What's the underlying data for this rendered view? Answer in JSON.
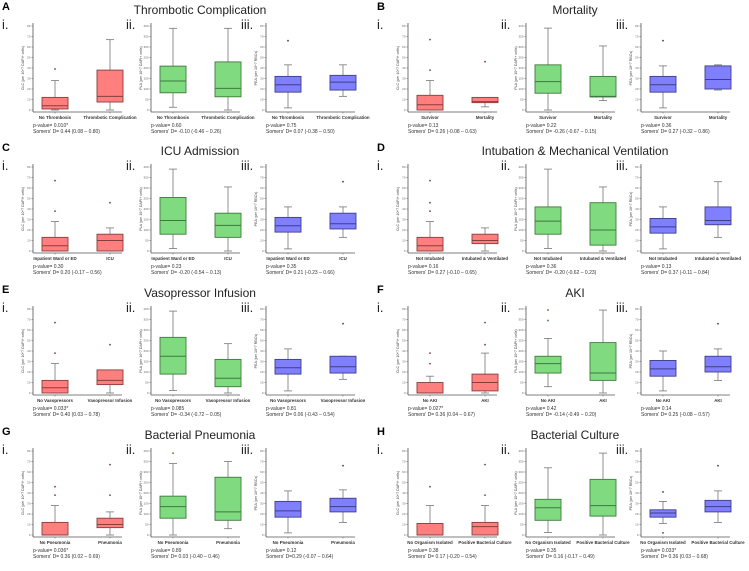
{
  "chart_data": {
    "type": "box",
    "axes": {
      "CLC": {
        "ylabel": "CLC (per 10^7 DAPI+ cells)",
        "ylim": [
          0,
          80
        ],
        "ticks": [
          "0",
          "10",
          "20",
          "30",
          "40",
          "50",
          "60",
          "70",
          "80"
        ]
      },
      "PLA": {
        "ylabel": "PLA (per 10^7 DAPI+ cells)",
        "ylim": [
          0,
          400
        ],
        "ticks": [
          "0",
          "50",
          "100",
          "150",
          "200",
          "250",
          "300",
          "350",
          "400"
        ]
      },
      "PEA": {
        "ylabel": "PEA (per 10^7 RBCs)",
        "ylim": [
          0,
          80
        ],
        "ticks": [
          "0",
          "10",
          "20",
          "30",
          "40",
          "50",
          "60",
          "70",
          "80"
        ]
      }
    },
    "colors": {
      "CLC": "#ff7f7f",
      "PLA": "#80db80",
      "PEA": "#8080ff",
      "CLC_dark": "#8a3d3d",
      "PLA_dark": "#3d7a3d",
      "PEA_dark": "#3d3d8a"
    },
    "numerals": [
      "i.",
      "ii.",
      "iii."
    ],
    "panels": [
      {
        "letter": "A",
        "title": "Thrombotic Complication",
        "groups": [
          "No Thrombosis",
          "Thrombotic Complication"
        ],
        "subplots": [
          {
            "metric": "CLC",
            "boxes": [
              {
                "stats": [
                  0,
                  1,
                  4,
                  12,
                  28
                ],
                "outliers": [
                  39
                ]
              },
              {
                "stats": [
                  0,
                  7.6,
                  13,
                  38,
                  67
                ],
                "outliers": []
              }
            ],
            "p": "p-value= 0.010*",
            "d": "Somers' D= 0.44 (0.08 – 0.80)"
          },
          {
            "metric": "PLA",
            "boxes": [
              {
                "stats": [
                  13,
                  82,
                  138,
                  209,
                  389
                ],
                "outliers": []
              },
              {
                "stats": [
                  0,
                  63,
                  103,
                  229,
                  389
                ],
                "outliers": []
              }
            ],
            "p": "p-value= 0.60",
            "d": "Somers' D= -0.10 (-0.46 – 0.26)"
          },
          {
            "metric": "PEA",
            "boxes": [
              {
                "stats": [
                  2,
                  17,
                  24,
                  32,
                  43
                ],
                "outliers": [
                  66
                ]
              },
              {
                "stats": [
                  13,
                  19,
                  26.5,
                  33,
                  43
                ],
                "outliers": []
              }
            ],
            "p": "p-value= 0.75",
            "d": "Somers' D= 0.07 (-0.38 – 0.50)"
          }
        ]
      },
      {
        "letter": "B",
        "title": "Mortality",
        "groups": [
          "Survivor",
          "Mortality"
        ],
        "subplots": [
          {
            "metric": "CLC",
            "boxes": [
              {
                "stats": [
                  0,
                  0,
                  5,
                  14,
                  28
                ],
                "outliers": [
                  38,
                  67
                ]
              },
              {
                "stats": [
                  3,
                  7,
                  8,
                  12,
                  12
                ],
                "outliers": [
                  46
                ]
              }
            ],
            "p": "p-value= 0.13",
            "d": "Somers' D= 0.26 (-0.08 – 0.63)"
          },
          {
            "metric": "PLA",
            "boxes": [
              {
                "stats": [
                  0,
                  80,
                  135,
                  215,
                  390
                ],
                "outliers": []
              },
              {
                "stats": [
                  45,
                  62,
                  65,
                  160,
                  305
                ],
                "outliers": []
              }
            ],
            "p": "p-value= 0.22",
            "d": "Somers' D= -0.26 (-0.67 – 0.15)"
          },
          {
            "metric": "PEA",
            "boxes": [
              {
                "stats": [
                  2,
                  17,
                  24,
                  32,
                  42
                ],
                "outliers": [
                  66
                ]
              },
              {
                "stats": [
                  19,
                  20,
                  29,
                  42,
                  43
                ],
                "outliers": []
              }
            ],
            "p": "p-value= 0.36",
            "d": "Somers' D= 0.27 (-0.32 – 0.86)"
          }
        ]
      },
      {
        "letter": "C",
        "title": "ICU Admission",
        "groups": [
          "Inpatient Ward or ED",
          "ICU"
        ],
        "subplots": [
          {
            "metric": "CLC",
            "boxes": [
              {
                "stats": [
                  0,
                  0,
                  5,
                  13,
                  28
                ],
                "outliers": [
                  38,
                  67
                ]
              },
              {
                "stats": [
                  0,
                  0,
                  10,
                  16,
                  22
                ],
                "outliers": [
                  46
                ]
              }
            ],
            "p": "p-value= 0.30",
            "d": "Somers' D= 0.20 (-0.17 – 0.56)"
          },
          {
            "metric": "PLA",
            "boxes": [
              {
                "stats": [
                  12,
                  80,
                  145,
                  255,
                  390
                ],
                "outliers": []
              },
              {
                "stats": [
                  0,
                  65,
                  122,
                  180,
                  305
                ],
                "outliers": []
              }
            ],
            "p": "p-value= 0.23",
            "d": "Somers' D= -0.20 (-0.54 – 0.13)"
          },
          {
            "metric": "PEA",
            "boxes": [
              {
                "stats": [
                  2,
                  18,
                  24,
                  32,
                  42
                ],
                "outliers": []
              },
              {
                "stats": [
                  13,
                  21,
                  26,
                  36,
                  42
                ],
                "outliers": [
                  66
                ]
              }
            ],
            "p": "p-value= 0.35",
            "d": "Somers' D= 0.21 (-0.23 – 0.66)"
          }
        ]
      },
      {
        "letter": "D",
        "title": "Intubation & Mechanical Ventilation",
        "groups": [
          "Not Intubated",
          "Intubated & Ventilated"
        ],
        "subplots": [
          {
            "metric": "CLC",
            "boxes": [
              {
                "stats": [
                  0,
                  0,
                  5,
                  13,
                  28
                ],
                "outliers": [
                  38,
                  46,
                  67
                ]
              },
              {
                "stats": [
                  0,
                  7,
                  10,
                  16,
                  22
                ],
                "outliers": []
              }
            ],
            "p": "p-value= 0.16",
            "d": "Somers' D= 0.27 (-0.10 – 0.65)"
          },
          {
            "metric": "PLA",
            "boxes": [
              {
                "stats": [
                  12,
                  80,
                  142,
                  210,
                  390
                ],
                "outliers": []
              },
              {
                "stats": [
                  0,
                  28,
                  100,
                  230,
                  305
                ],
                "outliers": []
              }
            ],
            "p": "p-value= 0.36",
            "d": "Somers' D= -0.20 (-0.62 – 0.23)"
          },
          {
            "metric": "PEA",
            "boxes": [
              {
                "stats": [
                  2,
                  17,
                  23,
                  31,
                  42
                ],
                "outliers": []
              },
              {
                "stats": [
                  13,
                  25,
                  29,
                  42,
                  66
                ],
                "outliers": []
              }
            ],
            "p": "p-value= 0.13",
            "d": "Somers' D= 0.37 (-0.11 – 0.84)"
          }
        ]
      },
      {
        "letter": "E",
        "title": "Vasopressor Infusion",
        "groups": [
          "No Vasopressors",
          "Vasopressor Infusion"
        ],
        "subplots": [
          {
            "metric": "CLC",
            "boxes": [
              {
                "stats": [
                  0,
                  0,
                  5,
                  12,
                  28
                ],
                "outliers": [
                  38,
                  67
                ]
              },
              {
                "stats": [
                  0,
                  8,
                  12,
                  22,
                  22
                ],
                "outliers": [
                  46
                ]
              }
            ],
            "p": "p-value= 0.033*",
            "d": "Somers' D= 0.40 (0.03 – 0.78)"
          },
          {
            "metric": "PLA",
            "boxes": [
              {
                "stats": [
                  12,
                  90,
                  175,
                  265,
                  390
                ],
                "outliers": []
              },
              {
                "stats": [
                  0,
                  30,
                  70,
                  160,
                  235
                ],
                "outliers": []
              }
            ],
            "p": "p-value= 0.085",
            "d": "Somers' D= -0.34 (-0.72 – 0.05)"
          },
          {
            "metric": "PEA",
            "boxes": [
              {
                "stats": [
                  2,
                  18,
                  24,
                  32,
                  42
                ],
                "outliers": []
              },
              {
                "stats": [
                  13,
                  19,
                  25,
                  35,
                  35
                ],
                "outliers": [
                  66
                ]
              }
            ],
            "p": "p-value= 0.81",
            "d": "Somers' D= 0.06 (-0.43 – 0.54)"
          }
        ]
      },
      {
        "letter": "F",
        "title": "AKI",
        "groups": [
          "No AKI",
          "AKI"
        ],
        "subplots": [
          {
            "metric": "CLC",
            "boxes": [
              {
                "stats": [
                  0,
                  0,
                  0,
                  10,
                  16
                ],
                "outliers": [
                  28,
                  38
                ]
              },
              {
                "stats": [
                  0,
                  2,
                  10,
                  18,
                  38
                ],
                "outliers": [
                  46,
                  67
                ]
              }
            ],
            "p": "p-value= 0.027*",
            "d": "Somers' D= 0.36 (0.04 – 0.67)"
          },
          {
            "metric": "PLA",
            "boxes": [
              {
                "stats": [
                  30,
                  95,
                  140,
                  175,
                  260
                ],
                "outliers": [
                  345,
                  395
                ]
              },
              {
                "stats": [
                  0,
                  60,
                  95,
                  240,
                  395
                ],
                "outliers": []
              }
            ],
            "p": "p-value= 0.42",
            "d": "Somers' D= -0.14 (-0.49 – 0.20)"
          },
          {
            "metric": "PEA",
            "boxes": [
              {
                "stats": [
                  2,
                  16,
                  23,
                  31,
                  40
                ],
                "outliers": []
              },
              {
                "stats": [
                  12,
                  20,
                  25,
                  35,
                  42
                ],
                "outliers": [
                  66
                ]
              }
            ],
            "p": "p-value= 0.14",
            "d": "Somers' D= 0.25 (-0.08 – 0.57)"
          }
        ]
      },
      {
        "letter": "G",
        "title": "Bacterial Pneumonia",
        "groups": [
          "No Pneumonia",
          "Pneumonia"
        ],
        "subplots": [
          {
            "metric": "CLC",
            "boxes": [
              {
                "stats": [
                  0,
                  0,
                  0,
                  12,
                  28
                ],
                "outliers": [
                  38,
                  46
                ]
              },
              {
                "stats": [
                  0,
                  7,
                  10,
                  16,
                  22
                ],
                "outliers": [
                  38,
                  67
                ]
              }
            ],
            "p": "p-value= 0.036*",
            "d": "Somers' D= 0.36 (0.02 – 0.69)"
          },
          {
            "metric": "PLA",
            "boxes": [
              {
                "stats": [
                  0,
                  80,
                  135,
                  185,
                  340
                ],
                "outliers": [
                  390
                ]
              },
              {
                "stats": [
                  30,
                  70,
                  110,
                  275,
                  350
                ],
                "outliers": []
              }
            ],
            "p": "p-value= 0.89",
            "d": "Somers' D= 0.03 (-0.40 – 0.46)"
          },
          {
            "metric": "PEA",
            "boxes": [
              {
                "stats": [
                  2,
                  17,
                  23,
                  32,
                  42
                ],
                "outliers": []
              },
              {
                "stats": [
                  12,
                  22,
                  27,
                  35,
                  43
                ],
                "outliers": [
                  66
                ]
              }
            ],
            "p": "p-value= 0.12",
            "d": "Somers' D=0.29 (-0.07 – 0.64)"
          }
        ]
      },
      {
        "letter": "H",
        "title": "Bacterial Culture",
        "groups": [
          "No Organism Isolated",
          "Positive Bacterial Culture"
        ],
        "subplots": [
          {
            "metric": "CLC",
            "boxes": [
              {
                "stats": [
                  0,
                  0,
                  0,
                  11,
                  28
                ],
                "outliers": [
                  46
                ]
              },
              {
                "stats": [
                  0,
                  0,
                  8,
                  12,
                  28
                ],
                "outliers": [
                  38,
                  67
                ]
              }
            ],
            "p": "p-value= 0.38",
            "d": "Somers' D= 0.17 (-0.20 – 0.54)"
          },
          {
            "metric": "PLA",
            "boxes": [
              {
                "stats": [
                  12,
                  70,
                  130,
                  170,
                  320
                ],
                "outliers": []
              },
              {
                "stats": [
                  0,
                  90,
                  140,
                  265,
                  390
                ],
                "outliers": []
              }
            ],
            "p": "p-value= 0.35",
            "d": "Somers' D= 0.16 (-0.17 – 0.49)"
          },
          {
            "metric": "PEA",
            "boxes": [
              {
                "stats": [
                  11,
                  17,
                  21,
                  24,
                  32
                ],
                "outliers": [
                  2,
                  41
                ]
              },
              {
                "stats": [
                  12,
                  22,
                  27,
                  33,
                  42
                ],
                "outliers": [
                  66
                ]
              }
            ],
            "p": "p-value= 0.033*",
            "d": "Somers' D= 0.36 (0.03 – 0.68)"
          }
        ]
      }
    ]
  }
}
